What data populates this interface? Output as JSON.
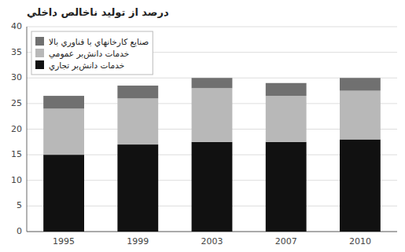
{
  "chart_data": {
    "type": "bar",
    "stacked": true,
    "title": "درصد از توليد ناخالص داخلي",
    "categories": [
      "1995",
      "1999",
      "2003",
      "2007",
      "2010"
    ],
    "series": [
      {
        "name": "خدمات دانش‌بر تجاري",
        "color": "#111111",
        "values": [
          15.0,
          17.0,
          17.5,
          17.5,
          18.0
        ]
      },
      {
        "name": "خدمات دانش‌بر عمومي",
        "color": "#b8b8b8",
        "values": [
          9.0,
          9.0,
          10.5,
          9.0,
          9.5
        ]
      },
      {
        "name": "صنايع کارخانهاي با فناوري بالا",
        "color": "#707070",
        "values": [
          2.5,
          2.5,
          2.0,
          2.5,
          2.5
        ]
      }
    ],
    "ylim": [
      0,
      40
    ],
    "yticks": [
      0,
      5,
      10,
      15,
      20,
      25,
      30,
      35,
      40
    ],
    "grid": true,
    "legend": "upper left"
  }
}
